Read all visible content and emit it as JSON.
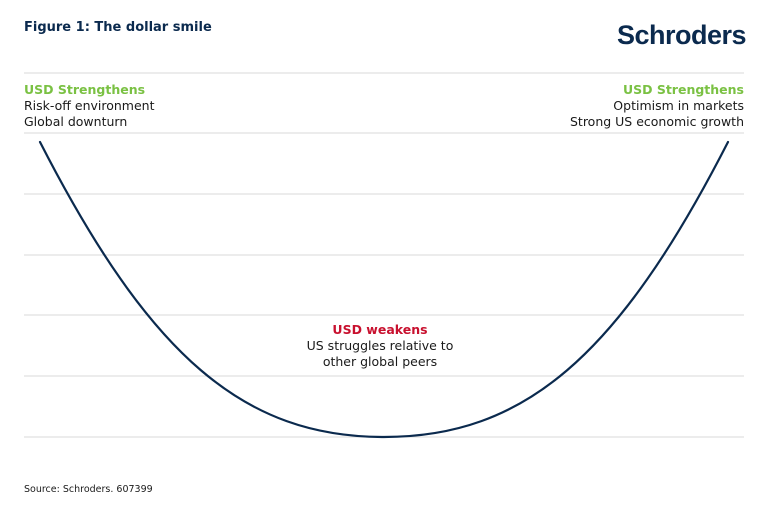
{
  "header": {
    "title": "Figure 1: The dollar smile",
    "logo_text": "Schroders"
  },
  "annotations": {
    "left": {
      "heading": "USD Strengthens",
      "lines": [
        "Risk-off environment",
        "Global downturn"
      ]
    },
    "right": {
      "heading": "USD Strengthens",
      "lines": [
        "Optimism in markets",
        "Strong US economic growth"
      ]
    },
    "center": {
      "heading": "USD weakens",
      "lines": [
        "US struggles relative to",
        "other global peers"
      ]
    }
  },
  "footer": {
    "source": "Source: Schroders. 607399"
  },
  "colors": {
    "navy": "#0b2a4e",
    "green": "#7ac143",
    "red": "#c8102e",
    "grid": "#d9d9d9"
  },
  "chart_data": {
    "type": "line",
    "grid": true,
    "x": [
      0,
      0.5,
      1
    ],
    "series": [
      {
        "values": [
          1,
          0,
          1
        ]
      }
    ]
  }
}
